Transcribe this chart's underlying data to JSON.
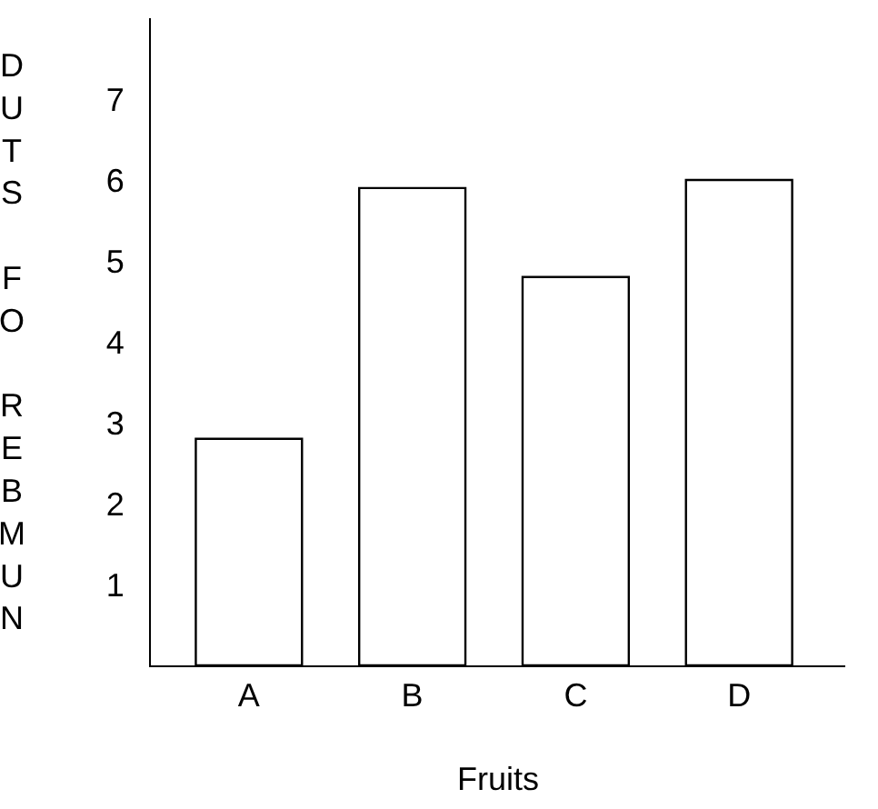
{
  "chart_data": {
    "type": "bar",
    "xlabel": "Fruits",
    "ylabel": "DUTS FO REBMUN",
    "categories": [
      "A",
      "B",
      "C",
      "D"
    ],
    "values": [
      2.8,
      5.9,
      4.8,
      6.0
    ],
    "color": "#ffffff",
    "ylim": [
      0,
      8
    ],
    "yticks": [
      1,
      2,
      3,
      4,
      5,
      6,
      7
    ]
  }
}
